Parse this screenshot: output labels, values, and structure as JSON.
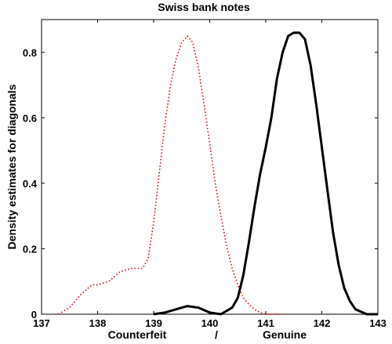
{
  "chart_data": {
    "type": "line",
    "title": "Swiss bank notes",
    "ylabel": "Density estimates for diagonals",
    "xlabel_parts": [
      "Counterfeit",
      "/",
      "Genuine"
    ],
    "xlim": [
      137,
      143
    ],
    "ylim": [
      0,
      0.9
    ],
    "xticks": [
      137,
      138,
      139,
      140,
      141,
      142,
      143
    ],
    "yticks": [
      0,
      0.2,
      0.4,
      0.6,
      0.8
    ],
    "ytick_labels": [
      "0",
      "0.2",
      "0.4",
      "0.6",
      "0.8"
    ],
    "grid": false,
    "series": [
      {
        "color": "#ff0000",
        "style": "dotted",
        "x": [
          137.3,
          137.5,
          137.7,
          137.9,
          138.0,
          138.2,
          138.4,
          138.6,
          138.8,
          138.9,
          139.0,
          139.1,
          139.2,
          139.3,
          139.4,
          139.5,
          139.6,
          139.7,
          139.8,
          139.9,
          140.0,
          140.1,
          140.2,
          140.3,
          140.4,
          140.5,
          140.6,
          140.7,
          140.8,
          140.9,
          141.0,
          141.2,
          141.3
        ],
        "y": [
          0.0,
          0.02,
          0.06,
          0.09,
          0.09,
          0.1,
          0.13,
          0.14,
          0.14,
          0.17,
          0.28,
          0.43,
          0.58,
          0.7,
          0.78,
          0.83,
          0.85,
          0.83,
          0.75,
          0.64,
          0.52,
          0.4,
          0.3,
          0.21,
          0.14,
          0.09,
          0.05,
          0.03,
          0.015,
          0.005,
          0.0,
          0.0,
          0.0
        ]
      },
      {
        "color": "#000000",
        "style": "solid",
        "x": [
          139.0,
          139.2,
          139.4,
          139.6,
          139.8,
          140.0,
          140.2,
          140.4,
          140.5,
          140.6,
          140.7,
          140.8,
          140.9,
          141.0,
          141.1,
          141.2,
          141.3,
          141.4,
          141.5,
          141.6,
          141.7,
          141.8,
          141.9,
          142.0,
          142.1,
          142.2,
          142.3,
          142.4,
          142.5,
          142.6,
          142.8,
          143.0
        ],
        "y": [
          0.0,
          0.005,
          0.015,
          0.025,
          0.02,
          0.005,
          0.0,
          0.02,
          0.05,
          0.12,
          0.22,
          0.33,
          0.43,
          0.51,
          0.6,
          0.72,
          0.8,
          0.85,
          0.86,
          0.86,
          0.84,
          0.76,
          0.64,
          0.51,
          0.38,
          0.25,
          0.15,
          0.08,
          0.04,
          0.015,
          0.0,
          0.0
        ]
      }
    ]
  }
}
